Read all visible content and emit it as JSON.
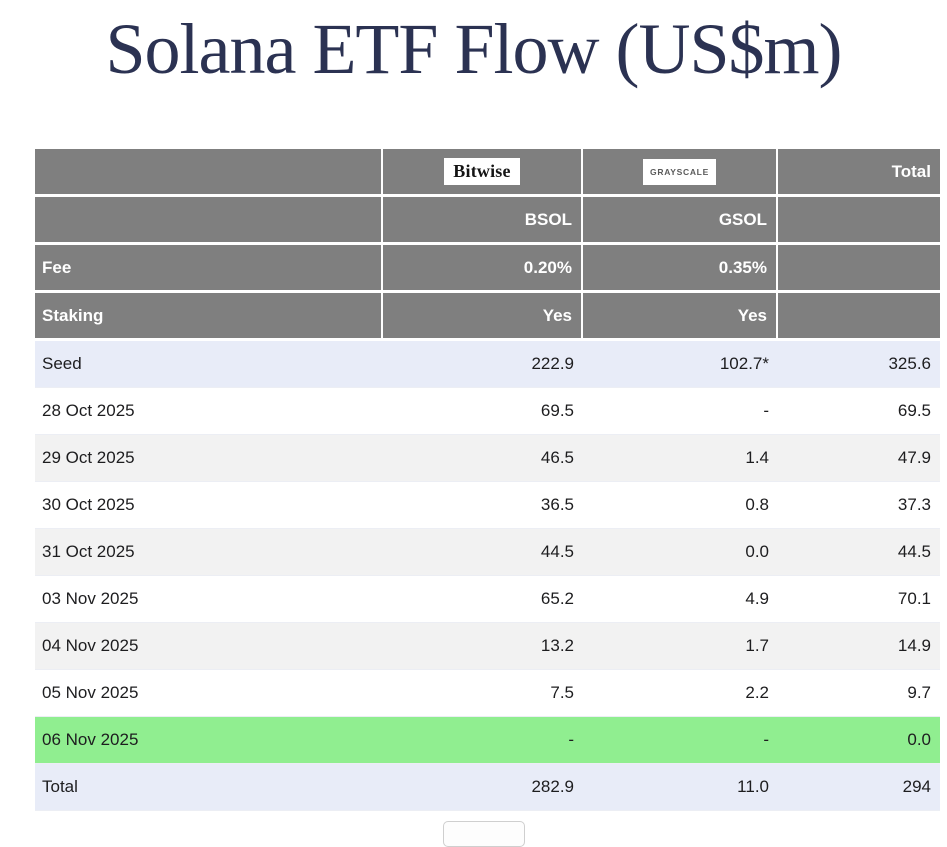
{
  "title": "Solana ETF Flow (US$m)",
  "table": {
    "issuer_row": {
      "bitwise": "Bitwise",
      "grayscale": "GRAYSCALE",
      "total": "Total"
    },
    "ticker_row": {
      "bsol": "BSOL",
      "gsol": "GSOL"
    },
    "fee_row": {
      "label": "Fee",
      "bsol": "0.20%",
      "gsol": "0.35%"
    },
    "staking_row": {
      "label": "Staking",
      "bsol": "Yes",
      "gsol": "Yes"
    },
    "rows": [
      {
        "label": "Seed",
        "bsol": "222.9",
        "gsol": "102.7*",
        "total": "325.6",
        "variant": "seed"
      },
      {
        "label": "28 Oct 2025",
        "bsol": "69.5",
        "gsol": "-",
        "total": "69.5",
        "variant": "white"
      },
      {
        "label": "29 Oct 2025",
        "bsol": "46.5",
        "gsol": "1.4",
        "total": "47.9",
        "variant": "stripe"
      },
      {
        "label": "30 Oct 2025",
        "bsol": "36.5",
        "gsol": "0.8",
        "total": "37.3",
        "variant": "white"
      },
      {
        "label": "31 Oct 2025",
        "bsol": "44.5",
        "gsol": "0.0",
        "total": "44.5",
        "variant": "stripe"
      },
      {
        "label": "03 Nov 2025",
        "bsol": "65.2",
        "gsol": "4.9",
        "total": "70.1",
        "variant": "white"
      },
      {
        "label": "04 Nov 2025",
        "bsol": "13.2",
        "gsol": "1.7",
        "total": "14.9",
        "variant": "stripe"
      },
      {
        "label": "05 Nov 2025",
        "bsol": "7.5",
        "gsol": "2.2",
        "total": "9.7",
        "variant": "white"
      },
      {
        "label": "06 Nov 2025",
        "bsol": "-",
        "gsol": "-",
        "total": "0.0",
        "variant": "green"
      },
      {
        "label": "Total",
        "bsol": "282.9",
        "gsol": "11.0",
        "total": "294",
        "variant": "total"
      }
    ]
  },
  "colors": {
    "header_gray": "#7f7f7f",
    "highlight_lavender": "#e8ecf8",
    "stripe_gray": "#f2f2f2",
    "highlight_green": "#90ee90",
    "title_navy": "#2b3252"
  },
  "chart_data": {
    "type": "table",
    "title": "Solana ETF Flow (US$m)",
    "columns": [
      "",
      "BSOL",
      "GSOL",
      "Total"
    ],
    "issuers": [
      "",
      "Bitwise",
      "Grayscale",
      ""
    ],
    "fee": [
      "Fee",
      "0.20%",
      "0.35%",
      ""
    ],
    "staking": [
      "Staking",
      "Yes",
      "Yes",
      ""
    ],
    "rows": [
      [
        "Seed",
        222.9,
        "102.7*",
        325.6
      ],
      [
        "28 Oct 2025",
        69.5,
        null,
        69.5
      ],
      [
        "29 Oct 2025",
        46.5,
        1.4,
        47.9
      ],
      [
        "30 Oct 2025",
        36.5,
        0.8,
        37.3
      ],
      [
        "31 Oct 2025",
        44.5,
        0.0,
        44.5
      ],
      [
        "03 Nov 2025",
        65.2,
        4.9,
        70.1
      ],
      [
        "04 Nov 2025",
        13.2,
        1.7,
        14.9
      ],
      [
        "05 Nov 2025",
        7.5,
        2.2,
        9.7
      ],
      [
        "06 Nov 2025",
        null,
        null,
        0.0
      ],
      [
        "Total",
        282.9,
        11.0,
        294
      ]
    ],
    "notes": "Row '06 Nov 2025' highlighted green; 'Seed' and 'Total' rows highlighted lavender; GSOL seed value flagged with asterisk."
  }
}
